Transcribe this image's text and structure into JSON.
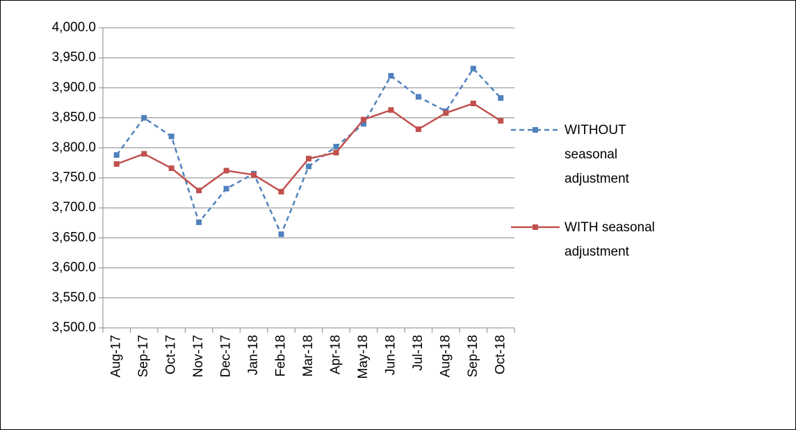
{
  "chart_data": {
    "type": "line",
    "categories": [
      "Aug-17",
      "Sep-17",
      "Oct-17",
      "Nov-17",
      "Dec-17",
      "Jan-18",
      "Feb-18",
      "Mar-18",
      "Apr-18",
      "May-18",
      "Jun-18",
      "Jul-18",
      "Aug-18",
      "Sep-18",
      "Oct-18"
    ],
    "series": [
      {
        "name": "WITHOUT seasonal adjustment",
        "color": "#4f81bd",
        "dashed": true,
        "values": [
          3788,
          3850,
          3819,
          3676,
          3732,
          3757,
          3656,
          3769,
          3802,
          3840,
          3920,
          3885,
          3861,
          3932,
          3883
        ]
      },
      {
        "name": "WITH seasonal adjustment",
        "color": "#c0504d",
        "dashed": false,
        "values": [
          3773,
          3790,
          3766,
          3729,
          3762,
          3755,
          3727,
          3782,
          3792,
          3847,
          3863,
          3831,
          3858,
          3874,
          3845
        ]
      }
    ],
    "ylim": [
      3500,
      4000
    ],
    "yticks": [
      {
        "value": 3500,
        "label": "3,500.0"
      },
      {
        "value": 3550,
        "label": "3,550.0"
      },
      {
        "value": 3600,
        "label": "3,600.0"
      },
      {
        "value": 3650,
        "label": "3,650.0"
      },
      {
        "value": 3700,
        "label": "3,700.0"
      },
      {
        "value": 3750,
        "label": "3,750.0"
      },
      {
        "value": 3800,
        "label": "3,800.0"
      },
      {
        "value": 3850,
        "label": "3,850.0"
      },
      {
        "value": 3900,
        "label": "3,900.0"
      },
      {
        "value": 3950,
        "label": "3,950.0"
      },
      {
        "value": 4000,
        "label": "4,000.0"
      }
    ],
    "grid": true,
    "legend": "right"
  }
}
